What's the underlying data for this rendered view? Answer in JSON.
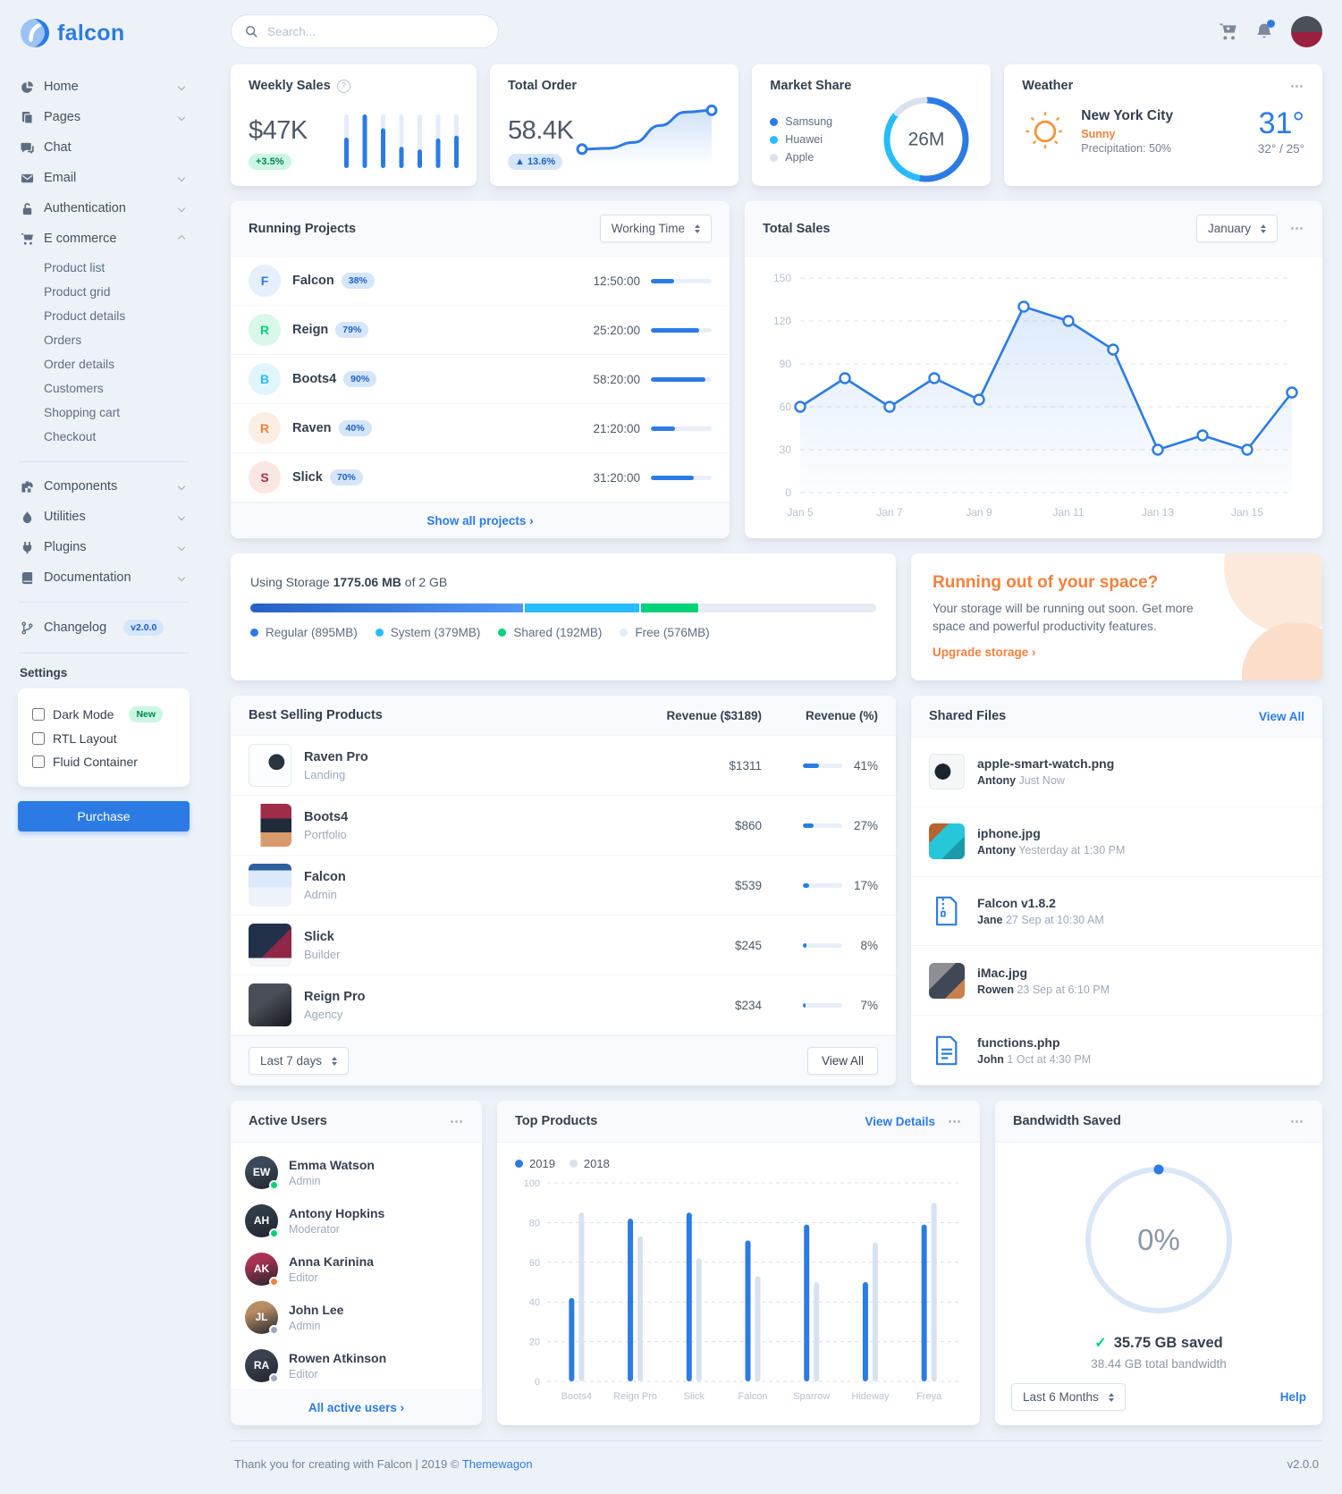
{
  "brand": {
    "name": "falcon"
  },
  "icons": {
    "ellipsis": "⋯",
    "check": "✓",
    "question": "?"
  },
  "topbar": {
    "search_placeholder": "Search..."
  },
  "sidebar": {
    "items": [
      {
        "label": "Home",
        "icon": "pie-chart-icon",
        "chevron": "down"
      },
      {
        "label": "Pages",
        "icon": "pages-icon",
        "chevron": "down"
      },
      {
        "label": "Chat",
        "icon": "chat-icon"
      },
      {
        "label": "Email",
        "icon": "email-icon",
        "chevron": "down"
      },
      {
        "label": "Authentication",
        "icon": "lock-icon",
        "chevron": "down"
      },
      {
        "label": "E commerce",
        "icon": "shopping-cart-icon",
        "chevron": "up",
        "children": [
          "Product list",
          "Product grid",
          "Product details",
          "Orders",
          "Order details",
          "Customers",
          "Shopping cart",
          "Checkout"
        ]
      }
    ],
    "items2": [
      {
        "label": "Components",
        "icon": "puzzle-icon",
        "chevron": "down"
      },
      {
        "label": "Utilities",
        "icon": "flame-icon",
        "chevron": "down"
      },
      {
        "label": "Plugins",
        "icon": "plug-icon",
        "chevron": "down"
      },
      {
        "label": "Documentation",
        "icon": "book-icon",
        "chevron": "down"
      }
    ],
    "changelog": {
      "label": "Changelog",
      "badge": "v2.0.0",
      "icon": "code-branch-icon"
    },
    "settings": {
      "heading": "Settings",
      "options": [
        {
          "label": "Dark Mode",
          "badge": "New",
          "checked": false
        },
        {
          "label": "RTL Layout",
          "checked": false
        },
        {
          "label": "Fluid Container",
          "checked": false
        }
      ],
      "purchase_label": "Purchase"
    }
  },
  "cards": {
    "weekly_sales": {
      "title": "Weekly Sales",
      "value": "$47K",
      "badge": "+3.5%"
    },
    "total_order": {
      "title": "Total Order",
      "value": "58.4K",
      "badge": "▲ 13.6%"
    },
    "market_share": {
      "title": "Market Share",
      "center": "26M",
      "legend": [
        {
          "label": "Samsung",
          "color": "#2c7be5"
        },
        {
          "label": "Huawei",
          "color": "#27bcfd"
        },
        {
          "label": "Apple",
          "color": "#d8e2ef"
        }
      ]
    },
    "weather": {
      "title": "Weather",
      "city": "New York City",
      "condition": "Sunny",
      "precipitation": "Precipitation: 50%",
      "temp": "31°",
      "range": "32° / 25°"
    },
    "running_projects": {
      "title": "Running Projects",
      "filter": "Working Time",
      "show_all": "Show all projects ›",
      "projects": [
        {
          "initial": "F",
          "name": "Falcon",
          "pct": 38,
          "time": "12:50:00",
          "color": "#2c7be5",
          "bg": "#e6effc"
        },
        {
          "initial": "R",
          "name": "Reign",
          "pct": 79,
          "time": "25:20:00",
          "color": "#00d27a",
          "bg": "#d9f8ea"
        },
        {
          "initial": "B",
          "name": "Boots4",
          "pct": 90,
          "time": "58:20:00",
          "color": "#27bcfd",
          "bg": "#e0f5fe"
        },
        {
          "initial": "R",
          "name": "Raven",
          "pct": 40,
          "time": "21:20:00",
          "color": "#f5803e",
          "bg": "#fdeee3"
        },
        {
          "initial": "S",
          "name": "Slick",
          "pct": 70,
          "time": "31:20:00",
          "color": "#b02a4c",
          "bg": "#fbe7e2"
        }
      ]
    },
    "total_sales": {
      "title": "Total Sales",
      "month": "January"
    },
    "storage": {
      "prefix": "Using Storage",
      "used": "1775.06 MB",
      "suffix": "of 2 GB",
      "segments": [
        {
          "label": "Regular (895MB)",
          "mb": 895,
          "color": "#2c7be5",
          "gradient": "linear-gradient(90deg,#2561c4,#4f96f7)"
        },
        {
          "label": "System (379MB)",
          "mb": 379,
          "color": "#27bcfd"
        },
        {
          "label": "Shared (192MB)",
          "mb": 192,
          "color": "#00d27a"
        },
        {
          "label": "Free (576MB)",
          "mb": 576,
          "color": "#e6ecf5"
        }
      ]
    },
    "space_warning": {
      "title": "Running out of your space?",
      "body": "Your storage will be running out soon. Get more space and powerful productivity features.",
      "link": "Upgrade storage ›"
    },
    "best_selling": {
      "title": "Best Selling Products",
      "col_revenue": "Revenue ($3189)",
      "col_pct": "Revenue (%)",
      "filter": "Last 7 days",
      "view_all": "View All",
      "products": [
        {
          "name": "Raven Pro",
          "type": "Landing",
          "revenue": "$1311",
          "pct": 41,
          "thumb": "raven"
        },
        {
          "name": "Boots4",
          "type": "Portfolio",
          "revenue": "$860",
          "pct": 27,
          "thumb": "boots4"
        },
        {
          "name": "Falcon",
          "type": "Admin",
          "revenue": "$539",
          "pct": 17,
          "thumb": "falcon"
        },
        {
          "name": "Slick",
          "type": "Builder",
          "revenue": "$245",
          "pct": 8,
          "thumb": "slick"
        },
        {
          "name": "Reign Pro",
          "type": "Agency",
          "revenue": "$234",
          "pct": 7,
          "thumb": "reign"
        }
      ]
    },
    "shared_files": {
      "title": "Shared Files",
      "view_all": "View All",
      "files": [
        {
          "name": "apple-smart-watch.png",
          "by": "Antony",
          "time": "Just Now",
          "kind": "watch"
        },
        {
          "name": "iphone.jpg",
          "by": "Antony",
          "time": "Yesterday at 1:30 PM",
          "kind": "iphone"
        },
        {
          "name": "Falcon v1.8.2",
          "by": "Jane",
          "time": "27 Sep at 10:30 AM",
          "kind": "zip"
        },
        {
          "name": "iMac.jpg",
          "by": "Rowen",
          "time": "23 Sep at 6:10 PM",
          "kind": "imac"
        },
        {
          "name": "functions.php",
          "by": "John",
          "time": "1 Oct at 4:30 PM",
          "kind": "file"
        }
      ]
    },
    "active_users": {
      "title": "Active Users",
      "link": "All active users ›",
      "users": [
        {
          "name": "Emma Watson",
          "role": "Admin",
          "status_color": "#00d27a",
          "avatar_color": "#3b4a5a"
        },
        {
          "name": "Antony Hopkins",
          "role": "Moderator",
          "status_color": "#00d27a",
          "avatar_color": "#2f3b47"
        },
        {
          "name": "Anna Karinina",
          "role": "Editor",
          "status_color": "#f5803e",
          "avatar_color": "#a83252"
        },
        {
          "name": "John Lee",
          "role": "Admin",
          "status_color": "#9da9bb",
          "avatar_color": "#b98d63"
        },
        {
          "name": "Rowen Atkinson",
          "role": "Editor",
          "status_color": "#9da9bb",
          "avatar_color": "#3a4250"
        }
      ]
    },
    "top_products": {
      "title": "Top Products",
      "link": "View Details"
    },
    "bandwidth": {
      "title": "Bandwidth Saved",
      "saved": "35.75 GB saved",
      "total": "38.44 GB total bandwidth",
      "filter": "Last 6 Months",
      "help": "Help"
    }
  },
  "footer": {
    "left": "Thank you for creating with Falcon | 2019 ©",
    "brand_link": "Themewagon",
    "version": "v2.0.0"
  },
  "chart_data": [
    {
      "id": "weekly_sales",
      "type": "bar",
      "title": "Weekly Sales",
      "values": [
        33,
        58,
        43,
        23,
        20,
        32,
        35
      ],
      "ylim": [
        0,
        58
      ],
      "color": "#2c7be5",
      "track_color": "#e4ecf8"
    },
    {
      "id": "total_order",
      "type": "line",
      "title": "Total Order",
      "values": [
        14,
        15,
        22,
        42,
        58,
        60
      ],
      "ylim": [
        0,
        70
      ],
      "color": "#2c7be5"
    },
    {
      "id": "market_share",
      "type": "pie",
      "title": "Market Share",
      "center_label": "26M",
      "labels": [
        "Samsung",
        "Huawei",
        "Apple"
      ],
      "values": [
        53,
        33,
        14
      ],
      "colors": [
        "#2c7be5",
        "#27bcfd",
        "#d8e2ef"
      ]
    },
    {
      "id": "total_sales",
      "type": "line",
      "title": "Total Sales",
      "x": [
        "Jan 5",
        "Jan 6",
        "Jan 7",
        "Jan 8",
        "Jan 9",
        "Jan 10",
        "Jan 11",
        "Jan 12",
        "Jan 13",
        "Jan 14",
        "Jan 15",
        "Jan 16"
      ],
      "values": [
        60,
        80,
        60,
        80,
        65,
        130,
        120,
        100,
        30,
        40,
        30,
        70
      ],
      "x_tick_labels": [
        "Jan 5",
        "Jan 7",
        "Jan 9",
        "Jan 11",
        "Jan 13",
        "Jan 15"
      ],
      "y_ticks": [
        0,
        30,
        60,
        90,
        120,
        150
      ],
      "ylim": [
        0,
        150
      ],
      "grid": "dashed",
      "color": "#2c7be5"
    },
    {
      "id": "top_products",
      "type": "bar",
      "title": "Top Products",
      "categories": [
        "Boots4",
        "Reign Pro",
        "Slick",
        "Falcon",
        "Sparrow",
        "Hideway",
        "Freya"
      ],
      "series": [
        {
          "name": "2019",
          "color": "#2c7be5",
          "values": [
            42,
            82,
            85,
            71,
            79,
            50,
            79
          ]
        },
        {
          "name": "2018",
          "color": "#d8e2ef",
          "values": [
            85,
            73,
            62,
            53,
            50,
            70,
            90
          ]
        }
      ],
      "y_ticks": [
        0,
        20,
        40,
        60,
        80,
        100
      ],
      "ylim": [
        0,
        100
      ],
      "grid": "dashed",
      "legend_position": "top-left"
    },
    {
      "id": "bandwidth",
      "type": "gauge",
      "value": 0,
      "max": 100,
      "center_label": "0%",
      "track_color": "#d9e6f7",
      "dot_color": "#2c7be5"
    }
  ]
}
